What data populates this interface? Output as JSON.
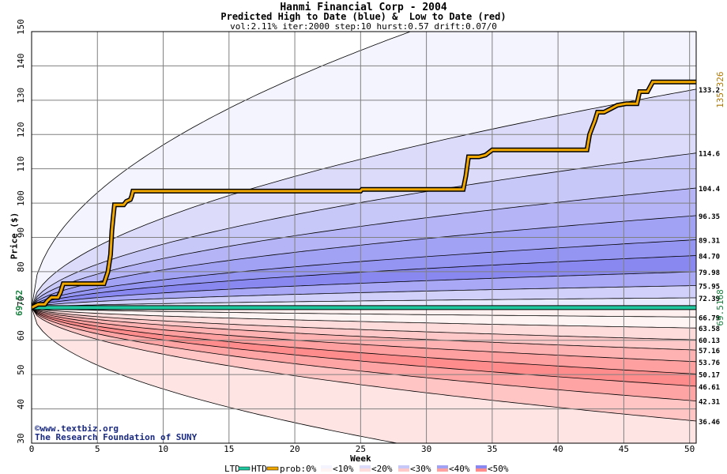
{
  "chart_data": {
    "type": "area",
    "title": "Hanmi Financial Corp - 2004",
    "subtitle": "Predicted High to Date (blue) &  Low to Date (red)",
    "params": "vol:2.11% iter:2000 step:10 hurst:0.57 drift:0.07/0",
    "xlabel": "Week",
    "ylabel": "Price ($)",
    "xlim": [
      0,
      50.5
    ],
    "ylim": [
      30,
      150
    ],
    "x_ticks": [
      0,
      5,
      10,
      15,
      20,
      25,
      30,
      35,
      40,
      45,
      50
    ],
    "y_ticks": [
      30,
      40,
      50,
      60,
      70,
      80,
      90,
      100,
      110,
      120,
      130,
      140,
      150
    ],
    "start_price": 69.52,
    "start_label": "69.52",
    "ltd_value_label": "69.5168",
    "htd_value_label": "135.326",
    "ltd_value": 69.5168,
    "htd_value": 135.326,
    "upper_bands": [
      {
        "end": 133.2,
        "label": "133.2",
        "fill": "#f4f4ff"
      },
      {
        "end": 114.6,
        "label": "114.6",
        "fill": "#dcdcfa"
      },
      {
        "end": 104.4,
        "label": "104.4",
        "fill": "#c8c8f8"
      },
      {
        "end": 96.35,
        "label": "96.35",
        "fill": "#b4b4f6"
      },
      {
        "end": 89.31,
        "label": "89.31",
        "fill": "#a2a2f4"
      },
      {
        "end": 84.7,
        "label": "84.70",
        "fill": "#9494f2"
      },
      {
        "end": 79.98,
        "label": "79.98",
        "fill": "#8888f0"
      },
      {
        "end": 75.95,
        "label": "75.95",
        "fill": "#a8a8f6"
      },
      {
        "end": 72.39,
        "label": "72.39",
        "fill": "#d0d0fa"
      }
    ],
    "upper_outer": {
      "k": 15.0,
      "p": 0.5
    },
    "lower_bands": [
      {
        "end": 66.79,
        "label": "66.79",
        "fill": "#fff4f4"
      },
      {
        "end": 63.58,
        "label": "63.58",
        "fill": "#ffdcdc"
      },
      {
        "end": 60.13,
        "label": "60.13",
        "fill": "#ffc8c8"
      },
      {
        "end": 57.16,
        "label": "57.16",
        "fill": "#ffb2b2"
      },
      {
        "end": 53.76,
        "label": "53.76",
        "fill": "#ffa0a0"
      },
      {
        "end": 50.17,
        "label": "50.17",
        "fill": "#ff8c8c"
      },
      {
        "end": 46.61,
        "label": "46.61",
        "fill": "#ffa4a4"
      },
      {
        "end": 42.31,
        "label": "42.31",
        "fill": "#ffc4c4"
      },
      {
        "end": 36.46,
        "label": "36.46",
        "fill": "#ffe4e4"
      }
    ],
    "lower_outer": {
      "k": -7.5,
      "p": 0.5
    },
    "htd_path": [
      [
        0,
        69.52
      ],
      [
        0.5,
        70.5
      ],
      [
        1,
        70.5
      ],
      [
        1.2,
        71.5
      ],
      [
        1.5,
        72.5
      ],
      [
        2,
        72.5
      ],
      [
        2.2,
        74
      ],
      [
        2.4,
        76.5
      ],
      [
        3,
        76.5
      ],
      [
        5.5,
        76.5
      ],
      [
        5.8,
        80
      ],
      [
        6,
        85
      ],
      [
        6.1,
        92
      ],
      [
        6.2,
        96
      ],
      [
        6.3,
        99.5
      ],
      [
        7,
        99.5
      ],
      [
        7.2,
        100.5
      ],
      [
        7.5,
        101
      ],
      [
        7.6,
        102
      ],
      [
        7.7,
        103.5
      ],
      [
        25,
        103.5
      ],
      [
        25.1,
        104
      ],
      [
        32.8,
        104
      ],
      [
        33,
        108
      ],
      [
        33.2,
        113.5
      ],
      [
        34,
        113.5
      ],
      [
        34.5,
        114
      ],
      [
        35,
        115.5
      ],
      [
        42.2,
        115.5
      ],
      [
        42.4,
        120
      ],
      [
        42.6,
        122
      ],
      [
        42.8,
        124
      ],
      [
        43,
        126.5
      ],
      [
        43.5,
        126.5
      ],
      [
        44,
        127.5
      ],
      [
        44.5,
        128.5
      ],
      [
        45.2,
        129
      ],
      [
        46,
        129
      ],
      [
        46.2,
        132.5
      ],
      [
        46.8,
        132.5
      ],
      [
        47.2,
        135.3
      ],
      [
        50.5,
        135.3
      ]
    ],
    "legend": {
      "ltd": "LTD",
      "htd": "HTD",
      "prob": "prob:0%",
      "items": [
        {
          "label": "<10%",
          "fill_top": "#f4f4ff",
          "fill_bottom": "#fff4f4"
        },
        {
          "label": "<20%",
          "fill_top": "#dcdcfa",
          "fill_bottom": "#ffdcdc"
        },
        {
          "label": "<30%",
          "fill_top": "#c8c8f8",
          "fill_bottom": "#ffc8c8"
        },
        {
          "label": "<40%",
          "fill_top": "#a2a2f4",
          "fill_bottom": "#ffa0a0"
        },
        {
          "label": "<50%",
          "fill_top": "#8888f0",
          "fill_bottom": "#ff8c8c"
        }
      ]
    },
    "colors": {
      "ltd": "#20c8a0",
      "htd": "#f0a800",
      "grid": "#808080",
      "htd_label": "#b07800",
      "ltd_label": "#1a8040"
    },
    "watermark_line1": "www.textbiz.org",
    "watermark_line2": "The Research Foundation of SUNY"
  }
}
